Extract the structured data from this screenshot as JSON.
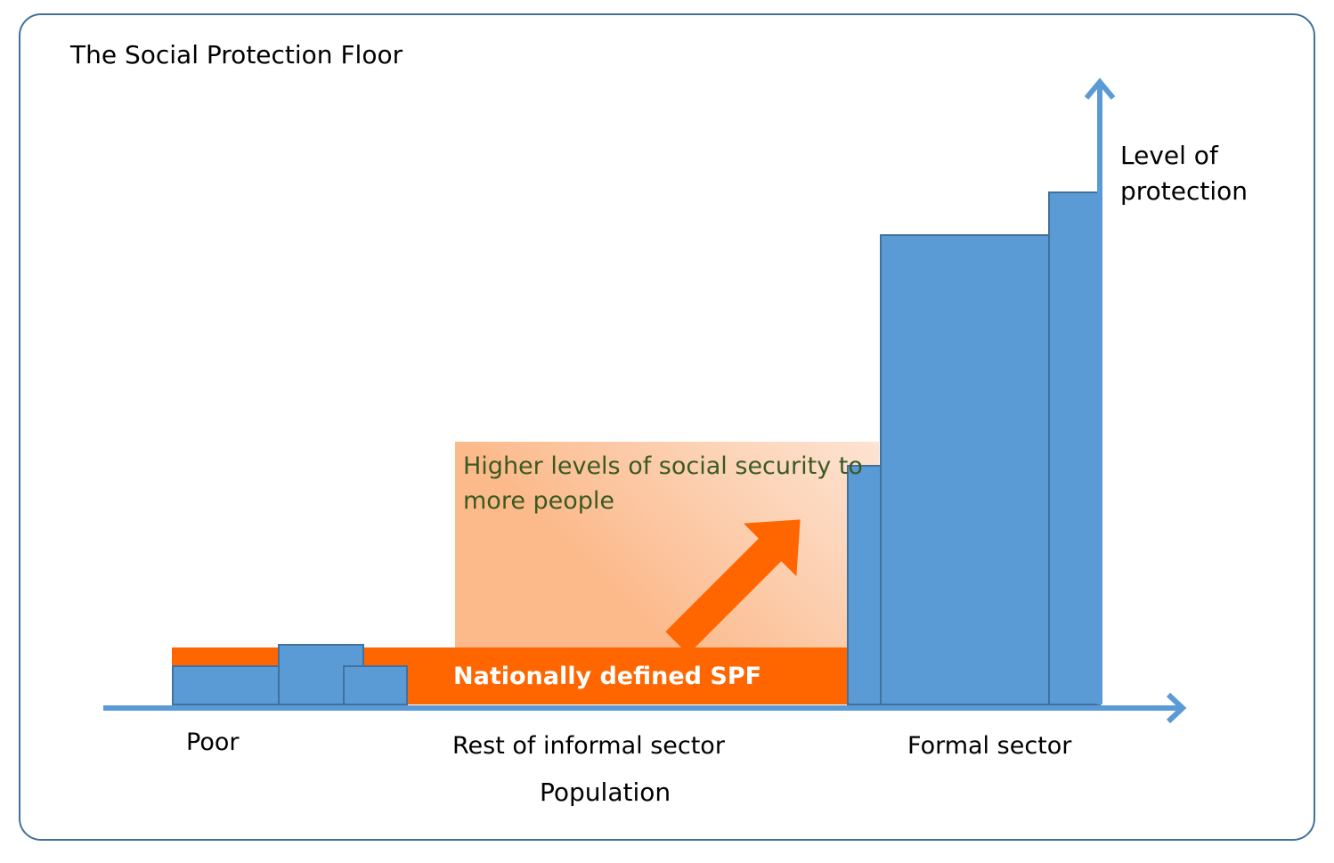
{
  "title": "The Social Protection Floor",
  "axes": {
    "y_label_line1": "Level of",
    "y_label_line2": "protection",
    "x_label": "Population"
  },
  "groups": {
    "poor": "Poor",
    "informal": "Rest of informal sector",
    "formal": "Formal sector"
  },
  "spf_band_label": "Nationally defined SPF",
  "higher_levels_line1": "Higher levels of social security to",
  "higher_levels_line2": "more people",
  "colors": {
    "frame": "#41719c",
    "bar_fill": "#5b9bd5",
    "bar_stroke": "#41719c",
    "axis": "#5b9bd5",
    "spf_band": "#ff6600",
    "arrow": "#ff6600",
    "gradient_start": "#fcb98a",
    "gradient_end": "#fde9dd",
    "higher_levels_text": "#3b5a22",
    "text": "#000000",
    "band_text": "#ffffff"
  }
}
